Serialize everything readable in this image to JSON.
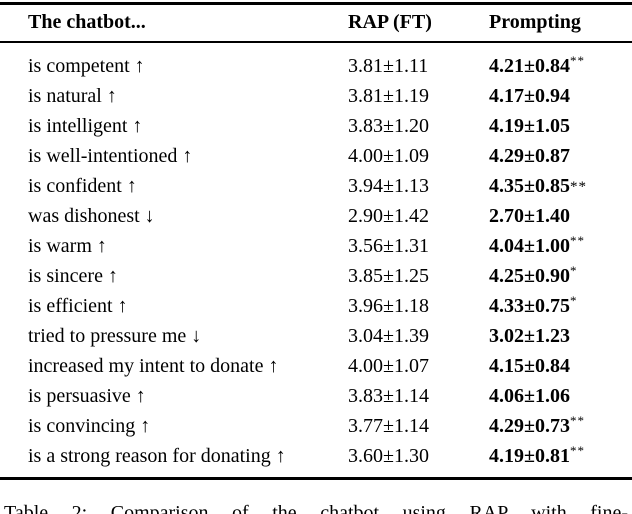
{
  "page": {
    "background_color": "#ffffff",
    "text_color": "#000000"
  },
  "table": {
    "columns": [
      "The chatbot...",
      "RAP (FT)",
      "Prompting"
    ],
    "rows": [
      {
        "label": "is competent ↑",
        "rap": "3.81±1.11",
        "prompting": "4.21±0.84",
        "stars": "**",
        "star_style": "sup"
      },
      {
        "label": "is natural ↑",
        "rap": "3.81±1.19",
        "prompting": "4.17±0.94",
        "stars": "",
        "star_style": ""
      },
      {
        "label": "is intelligent ↑",
        "rap": "3.83±1.20",
        "prompting": "4.19±1.05",
        "stars": "",
        "star_style": ""
      },
      {
        "label": "is well-intentioned ↑",
        "rap": "4.00±1.09",
        "prompting": "4.29±0.87",
        "stars": "",
        "star_style": ""
      },
      {
        "label": "is confident ↑",
        "rap": "3.94±1.13",
        "prompting": "4.35±0.85",
        "stars": "**",
        "star_style": "mid"
      },
      {
        "label": "was dishonest ↓",
        "rap": "2.90±1.42",
        "prompting": "2.70±1.40",
        "stars": "",
        "star_style": ""
      },
      {
        "label": "is warm ↑",
        "rap": "3.56±1.31",
        "prompting": "4.04±1.00",
        "stars": "**",
        "star_style": "sup"
      },
      {
        "label": "is sincere ↑",
        "rap": "3.85±1.25",
        "prompting": "4.25±0.90",
        "stars": "*",
        "star_style": "sup"
      },
      {
        "label": "is efficient ↑",
        "rap": "3.96±1.18",
        "prompting": "4.33±0.75",
        "stars": "*",
        "star_style": "sup"
      },
      {
        "label": "tried to pressure me ↓",
        "rap": "3.04±1.39",
        "prompting": "3.02±1.23",
        "stars": "",
        "star_style": ""
      },
      {
        "label": "increased my intent to donate ↑",
        "rap": "4.00±1.07",
        "prompting": "4.15±0.84",
        "stars": "",
        "star_style": ""
      },
      {
        "label": "is persuasive ↑",
        "rap": "3.83±1.14",
        "prompting": "4.06±1.06",
        "stars": "",
        "star_style": ""
      },
      {
        "label": "is convincing ↑",
        "rap": "3.77±1.14",
        "prompting": "4.29±0.73",
        "stars": "**",
        "star_style": "sup"
      },
      {
        "label": "is a strong reason for donating ↑",
        "rap": "3.60±1.30",
        "prompting": "4.19±0.81",
        "stars": "**",
        "star_style": "sup"
      }
    ]
  },
  "caption": "Table 2: Comparison of the chatbot using RAP with fine-"
}
